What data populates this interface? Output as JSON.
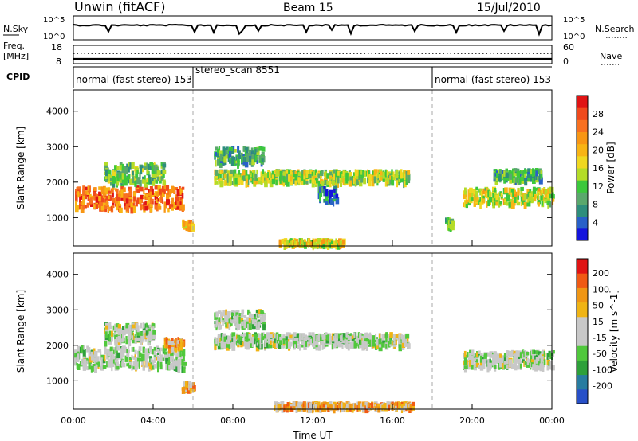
{
  "header": {
    "site": "Unwin (fitACF)",
    "beam": "Beam 15",
    "date": "15/Jul/2010"
  },
  "strips": {
    "nsky_label": "N.Sky",
    "nsky_ticks": [
      "10^5",
      "10^0"
    ],
    "nsearch_label": "N.Search",
    "nsearch_ticks": [
      "10^5",
      "10^0"
    ],
    "freq_label_1": "Freq.",
    "freq_label_2": "[MHz]",
    "freq_ticks": [
      "18",
      "8"
    ],
    "nave_label": "Nave",
    "nave_ticks": [
      "60",
      "0"
    ],
    "cpid_label": "CPID",
    "cpid_segments": [
      {
        "label": "normal (fast stereo) 153",
        "start_hour": 0
      },
      {
        "label": "stereo_scan 8551",
        "start_hour": 6
      },
      {
        "label": "normal (fast stereo) 153",
        "start_hour": 18
      }
    ]
  },
  "chart_data": [
    {
      "type": "heatmap",
      "name": "power",
      "ylabel": "Slant Range [km]",
      "yticks": [
        1000,
        2000,
        3000,
        4000
      ],
      "ylim": [
        200,
        4600
      ],
      "xlim_hours": [
        0,
        24
      ],
      "colorbar_label": "Power [dB]",
      "colorbar_ticks": [
        "28",
        "24",
        "20",
        "16",
        "12",
        "8",
        "4"
      ],
      "colorbar_colors": [
        "#1414dc",
        "#2860c8",
        "#2e8e7c",
        "#5aa86c",
        "#3cc83c",
        "#b4dc28",
        "#f0d820",
        "#f8b414",
        "#f89614",
        "#f87020",
        "#f04a1c",
        "#e01414"
      ],
      "bands": [
        {
          "from_hour": 0.0,
          "to_hour": 5.5,
          "center_km": 1600,
          "width_km": 650,
          "level": 0.78
        },
        {
          "from_hour": 1.5,
          "to_hour": 4.5,
          "center_km": 2300,
          "width_km": 550,
          "level": 0.35
        },
        {
          "from_hour": 5.4,
          "to_hour": 6.0,
          "center_km": 850,
          "width_km": 200,
          "level": 0.6
        },
        {
          "from_hour": 7.0,
          "to_hour": 16.8,
          "center_km": 2200,
          "width_km": 350,
          "level": 0.45
        },
        {
          "from_hour": 7.0,
          "to_hour": 9.5,
          "center_km": 2800,
          "width_km": 450,
          "level": 0.28
        },
        {
          "from_hour": 12.2,
          "to_hour": 13.2,
          "center_km": 1700,
          "width_km": 400,
          "level": 0.2
        },
        {
          "from_hour": 19.5,
          "to_hour": 24.0,
          "center_km": 1650,
          "width_km": 450,
          "level": 0.5
        },
        {
          "from_hour": 21.0,
          "to_hour": 23.5,
          "center_km": 2250,
          "width_km": 300,
          "level": 0.3
        },
        {
          "from_hour": 18.6,
          "to_hour": 19.0,
          "center_km": 900,
          "width_km": 250,
          "level": 0.35
        },
        {
          "from_hour": 10.3,
          "to_hour": 13.5,
          "center_km": 350,
          "width_km": 150,
          "level": 0.55
        }
      ]
    },
    {
      "type": "heatmap",
      "name": "velocity",
      "ylabel": "Slant Range [km]",
      "yticks": [
        1000,
        2000,
        3000,
        4000
      ],
      "ylim": [
        200,
        4600
      ],
      "xlim_hours": [
        0,
        24
      ],
      "colorbar_label": "Velocity [m s^-1]",
      "colorbar_ticks": [
        "200",
        "100",
        "50",
        "15",
        "-15",
        "-50",
        "-100",
        "-200"
      ],
      "colorbar_colors": [
        "#2850c8",
        "#287ca0",
        "#2ea03a",
        "#50c83c",
        "#c8c8c8",
        "#c8c8c8",
        "#f0b414",
        "#f09614",
        "#f05a14",
        "#e01414"
      ],
      "bands": [
        {
          "from_hour": 0.0,
          "to_hour": 5.5,
          "center_km": 1700,
          "width_km": 600,
          "level": 0.45
        },
        {
          "from_hour": 1.5,
          "to_hour": 4.0,
          "center_km": 2400,
          "width_km": 500,
          "level": 0.45
        },
        {
          "from_hour": 4.5,
          "to_hour": 5.5,
          "center_km": 2100,
          "width_km": 300,
          "level": 0.7
        },
        {
          "from_hour": 5.4,
          "to_hour": 6.0,
          "center_km": 900,
          "width_km": 300,
          "level": 0.72
        },
        {
          "from_hour": 7.0,
          "to_hour": 16.8,
          "center_km": 2200,
          "width_km": 350,
          "level": 0.45
        },
        {
          "from_hour": 7.0,
          "to_hour": 9.5,
          "center_km": 2800,
          "width_km": 450,
          "level": 0.45
        },
        {
          "from_hour": 19.5,
          "to_hour": 24.0,
          "center_km": 1650,
          "width_km": 450,
          "level": 0.45
        },
        {
          "from_hour": 10.0,
          "to_hour": 17.0,
          "center_km": 350,
          "width_km": 150,
          "level": 0.68
        }
      ]
    }
  ],
  "xaxis": {
    "label": "Time UT",
    "ticks": [
      "00:00",
      "04:00",
      "08:00",
      "12:00",
      "16:00",
      "20:00",
      "00:00"
    ]
  }
}
